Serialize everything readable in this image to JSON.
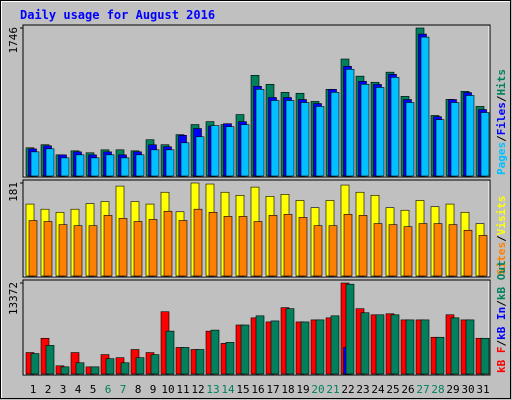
{
  "chart_data": [
    {
      "type": "bar",
      "title": "Daily usage for August 2016",
      "ylim": [
        0,
        1746
      ],
      "yticks": [
        1746
      ],
      "legend_separator": "/",
      "legend_order": [
        2,
        1,
        0
      ],
      "series": [
        {
          "name": "Hits",
          "color": "#00805c",
          "values": [
            333,
            369,
            250,
            297,
            274,
            309,
            309,
            297,
            428,
            369,
            488,
            607,
            642,
            607,
            725,
            1188,
            1082,
            987,
            976,
            880,
            1023,
            1380,
            1178,
            1106,
            1225,
            940,
            1746,
            714,
            904,
            999,
            821
          ]
        },
        {
          "name": "Files",
          "color": "#0000ff",
          "values": [
            320,
            356,
            249,
            285,
            249,
            285,
            249,
            285,
            368,
            345,
            480,
            560,
            590,
            617,
            641,
            1058,
            926,
            926,
            902,
            855,
            1022,
            1294,
            1117,
            1080,
            1199,
            902,
            1674,
            700,
            902,
            985,
            784
          ]
        },
        {
          "name": "Pages",
          "color": "#00c0ff",
          "values": [
            285,
            321,
            214,
            250,
            214,
            250,
            214,
            250,
            309,
            309,
            392,
            463,
            594,
            582,
            606,
            1023,
            891,
            891,
            867,
            820,
            987,
            1259,
            1082,
            1045,
            1164,
            867,
            1639,
            665,
            867,
            950,
            749
          ]
        }
      ]
    },
    {
      "type": "bar",
      "ylim": [
        0,
        181
      ],
      "yticks": [
        181
      ],
      "legend_separator": "/",
      "legend_order": [
        1,
        0
      ],
      "series": [
        {
          "name": "Visits",
          "color": "#ffff00",
          "values": [
            140,
            130,
            124,
            130,
            141,
            145,
            175,
            145,
            140,
            163,
            125,
            181,
            179,
            163,
            157,
            173,
            155,
            159,
            147,
            133,
            147,
            177,
            163,
            157,
            133,
            128,
            147,
            135,
            140,
            124,
            102
          ]
        },
        {
          "name": "Sites",
          "color": "#ff8000",
          "values": [
            108,
            106,
            100,
            98,
            98,
            118,
            112,
            106,
            110,
            126,
            108,
            130,
            124,
            116,
            116,
            106,
            118,
            120,
            114,
            98,
            98,
            120,
            118,
            102,
            100,
            96,
            102,
            102,
            100,
            89,
            79
          ]
        }
      ]
    },
    {
      "type": "bar",
      "ylim": [
        0,
        13372
      ],
      "yticks": [
        13372
      ],
      "legend_separator": "/",
      "legend_order": [
        0,
        1,
        2
      ],
      "categories": [
        "1",
        "2",
        "3",
        "4",
        "5",
        "6",
        "7",
        "8",
        "9",
        "10",
        "11",
        "12",
        "13",
        "14",
        "15",
        "16",
        "17",
        "18",
        "19",
        "20",
        "21",
        "22",
        "23",
        "24",
        "25",
        "26",
        "27",
        "28",
        "29",
        "30",
        "31"
      ],
      "x_label_colors": [
        "#000000",
        "#000000",
        "#000000",
        "#000000",
        "#000000",
        "#00805c",
        "#00805c",
        "#000000",
        "#000000",
        "#000000",
        "#000000",
        "#000000",
        "#00805c",
        "#00805c",
        "#000000",
        "#000000",
        "#000000",
        "#000000",
        "#000000",
        "#00805c",
        "#00805c",
        "#000000",
        "#000000",
        "#000000",
        "#000000",
        "#000000",
        "#00805c",
        "#00805c",
        "#000000",
        "#000000",
        "#000000"
      ],
      "series": [
        {
          "name": "kB F",
          "color": "#ff0000",
          "values": [
            3150,
            5250,
            1200,
            3150,
            1050,
            2850,
            2400,
            3600,
            3150,
            9150,
            3900,
            3600,
            6300,
            4500,
            7200,
            8250,
            7650,
            9750,
            7650,
            7950,
            8250,
            13372,
            9600,
            8700,
            8850,
            7950,
            7950,
            5400,
            8700,
            7950,
            5250
          ]
        },
        {
          "name": "kB In",
          "color": "#0000ff",
          "values": [
            0,
            0,
            0,
            0,
            0,
            0,
            0,
            0,
            0,
            0,
            0,
            0,
            0,
            0,
            0,
            0,
            0,
            0,
            0,
            0,
            0,
            3900,
            0,
            0,
            0,
            0,
            0,
            0,
            0,
            0,
            0
          ]
        },
        {
          "name": "kB Out",
          "color": "#00805c",
          "values": [
            3000,
            4200,
            1050,
            1650,
            1050,
            2250,
            1650,
            2400,
            2850,
            6300,
            3900,
            3600,
            6450,
            4650,
            7200,
            8550,
            7800,
            9600,
            7650,
            7950,
            8550,
            13200,
            9000,
            8700,
            8700,
            7950,
            7950,
            5400,
            8250,
            7950,
            5250
          ]
        }
      ]
    }
  ]
}
